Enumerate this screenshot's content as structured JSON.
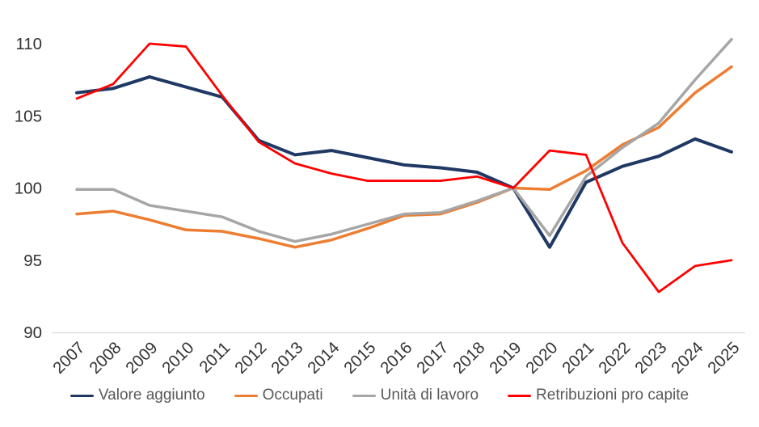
{
  "chart_data": {
    "type": "line",
    "title": "",
    "xlabel": "",
    "ylabel": "",
    "x_categories": [
      "2007",
      "2008",
      "2009",
      "2010",
      "2011",
      "2012",
      "2013",
      "2014",
      "2015",
      "2016",
      "2017",
      "2018",
      "2019",
      "2020",
      "2021",
      "2022",
      "2023",
      "2024",
      "2025"
    ],
    "series": [
      {
        "name": "Valore aggiunto",
        "color": "#1f3864",
        "values": [
          106.6,
          106.9,
          107.7,
          107.0,
          106.3,
          103.3,
          102.3,
          102.6,
          102.1,
          101.6,
          101.4,
          101.1,
          100.0,
          95.9,
          100.4,
          101.5,
          102.2,
          103.4,
          102.5
        ]
      },
      {
        "name": "Occupati",
        "color": "#ed7d31",
        "values": [
          98.2,
          98.4,
          97.8,
          97.1,
          97.0,
          96.5,
          95.9,
          96.4,
          97.2,
          98.1,
          98.2,
          99.0,
          100.0,
          99.9,
          101.2,
          103.0,
          104.2,
          106.6,
          108.4
        ]
      },
      {
        "name": "Unità di lavoro",
        "color": "#a6a6a6",
        "values": [
          99.9,
          99.9,
          98.8,
          98.4,
          98.0,
          97.0,
          96.3,
          96.8,
          97.5,
          98.2,
          98.3,
          99.1,
          100.0,
          96.7,
          100.8,
          102.8,
          104.5,
          107.5,
          110.3
        ]
      },
      {
        "name": "Retribuzioni pro capite",
        "color": "#ff0000",
        "values": [
          106.2,
          107.2,
          110.0,
          109.8,
          106.4,
          103.2,
          101.7,
          101.0,
          100.5,
          100.5,
          100.5,
          100.8,
          100.0,
          102.6,
          102.3,
          96.2,
          92.8,
          94.6,
          95.0
        ]
      }
    ],
    "y_axis": {
      "min": 90,
      "max": 110,
      "ticks": [
        110,
        105,
        100,
        95,
        90
      ]
    },
    "grid": "none",
    "legend_position": "bottom",
    "colors": {
      "axis_line": "#d9d9d9",
      "tick_labels": "#333333",
      "legend_text": "#595959",
      "background": "#ffffff"
    }
  }
}
